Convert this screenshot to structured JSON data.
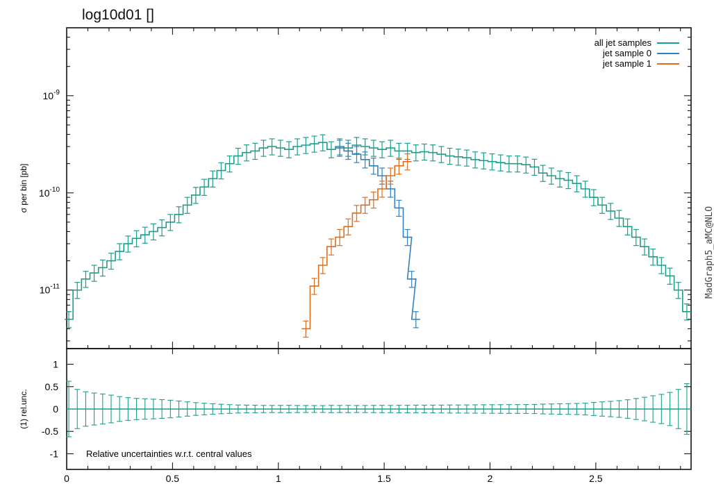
{
  "title": "log10d01 []",
  "side_label": "MadGraph5_aMC@NLO",
  "colors": {
    "all": "#1a9e8c",
    "j0": "#2f7fc1",
    "j1": "#dc6d1e"
  },
  "chart_data": [
    {
      "type": "line",
      "plot": "main",
      "ylabel": "σ per bin [pb]",
      "yscale": "log",
      "xlim": [
        0,
        2.95
      ],
      "ylim": [
        2.5e-12,
        5e-09
      ],
      "yticks": [
        {
          "v": 1e-11,
          "label": "10",
          "exp": "-11"
        },
        {
          "v": 1e-10,
          "label": "10",
          "exp": "-10"
        },
        {
          "v": 1e-09,
          "label": "10",
          "exp": "-9"
        }
      ],
      "legend_position": "top-right",
      "series": [
        {
          "name": "all jet samples",
          "color": "#1a9e8c",
          "points": [
            [
              0.01,
              5e-12
            ],
            [
              0.05,
              1e-11
            ],
            [
              0.09,
              1.3e-11
            ],
            [
              0.13,
              1.5e-11
            ],
            [
              0.17,
              1.7e-11
            ],
            [
              0.21,
              2e-11
            ],
            [
              0.25,
              2.5e-11
            ],
            [
              0.29,
              3e-11
            ],
            [
              0.33,
              3.4e-11
            ],
            [
              0.37,
              3.7e-11
            ],
            [
              0.41,
              4e-11
            ],
            [
              0.45,
              4.4e-11
            ],
            [
              0.49,
              5e-11
            ],
            [
              0.53,
              6e-11
            ],
            [
              0.57,
              7.5e-11
            ],
            [
              0.61,
              9.5e-11
            ],
            [
              0.65,
              1.15e-10
            ],
            [
              0.69,
              1.4e-10
            ],
            [
              0.73,
              1.7e-10
            ],
            [
              0.77,
              2e-10
            ],
            [
              0.81,
              2.4e-10
            ],
            [
              0.85,
              2.6e-10
            ],
            [
              0.89,
              2.7e-10
            ],
            [
              0.93,
              2.9e-10
            ],
            [
              0.97,
              3e-10
            ],
            [
              1.01,
              2.9e-10
            ],
            [
              1.05,
              2.8e-10
            ],
            [
              1.09,
              3e-10
            ],
            [
              1.13,
              3.1e-10
            ],
            [
              1.17,
              3.2e-10
            ],
            [
              1.21,
              3.3e-10
            ],
            [
              1.25,
              2.8e-10
            ],
            [
              1.29,
              3e-10
            ],
            [
              1.33,
              2.9e-10
            ],
            [
              1.37,
              3.1e-10
            ],
            [
              1.41,
              3e-10
            ],
            [
              1.45,
              2.9e-10
            ],
            [
              1.49,
              2.8e-10
            ],
            [
              1.53,
              2.9e-10
            ],
            [
              1.57,
              2.7e-10
            ],
            [
              1.61,
              2.7e-10
            ],
            [
              1.65,
              2.6e-10
            ],
            [
              1.69,
              2.65e-10
            ],
            [
              1.73,
              2.6e-10
            ],
            [
              1.77,
              2.5e-10
            ],
            [
              1.81,
              2.4e-10
            ],
            [
              1.85,
              2.35e-10
            ],
            [
              1.89,
              2.3e-10
            ],
            [
              1.93,
              2.2e-10
            ],
            [
              1.97,
              2.15e-10
            ],
            [
              2.01,
              2.1e-10
            ],
            [
              2.05,
              2.05e-10
            ],
            [
              2.09,
              2e-10
            ],
            [
              2.13,
              2e-10
            ],
            [
              2.17,
              1.95e-10
            ],
            [
              2.21,
              1.85e-10
            ],
            [
              2.25,
              1.6e-10
            ],
            [
              2.29,
              1.5e-10
            ],
            [
              2.33,
              1.4e-10
            ],
            [
              2.37,
              1.35e-10
            ],
            [
              2.41,
              1.25e-10
            ],
            [
              2.45,
              1.1e-10
            ],
            [
              2.49,
              9e-11
            ],
            [
              2.53,
              7.5e-11
            ],
            [
              2.57,
              6.5e-11
            ],
            [
              2.61,
              5.5e-11
            ],
            [
              2.65,
              4.5e-11
            ],
            [
              2.69,
              3.5e-11
            ],
            [
              2.73,
              2.8e-11
            ],
            [
              2.77,
              2.2e-11
            ],
            [
              2.81,
              1.8e-11
            ],
            [
              2.85,
              1.4e-11
            ],
            [
              2.89,
              1e-11
            ],
            [
              2.93,
              6e-12
            ]
          ]
        },
        {
          "name": "jet sample 0",
          "color": "#2f7fc1",
          "points": [
            [
              1.29,
              2.9e-10
            ],
            [
              1.33,
              2.7e-10
            ],
            [
              1.37,
              2.5e-10
            ],
            [
              1.41,
              2.2e-10
            ],
            [
              1.45,
              1.9e-10
            ],
            [
              1.49,
              1.5e-10
            ],
            [
              1.53,
              1.1e-10
            ],
            [
              1.57,
              7e-11
            ],
            [
              1.61,
              3.5e-11
            ],
            [
              1.63,
              1.3e-11
            ],
            [
              1.65,
              5e-12
            ]
          ]
        },
        {
          "name": "jet sample 1",
          "color": "#dc6d1e",
          "points": [
            [
              1.13,
              4e-12
            ],
            [
              1.17,
              1.1e-11
            ],
            [
              1.21,
              1.8e-11
            ],
            [
              1.25,
              2.8e-11
            ],
            [
              1.29,
              3.5e-11
            ],
            [
              1.33,
              4.5e-11
            ],
            [
              1.37,
              6.2e-11
            ],
            [
              1.41,
              7.5e-11
            ],
            [
              1.45,
              8.5e-11
            ],
            [
              1.49,
              1.1e-10
            ],
            [
              1.53,
              1.5e-10
            ],
            [
              1.57,
              1.9e-10
            ],
            [
              1.61,
              2.1e-10
            ]
          ]
        }
      ]
    },
    {
      "type": "line",
      "plot": "ratio",
      "ylabel": "(1) rel.unc.",
      "xlabel": "",
      "xlim": [
        0,
        2.95
      ],
      "ylim": [
        -1.35,
        1.35
      ],
      "yticks": [
        "1",
        "0.5",
        "0",
        "-0.5",
        "-1"
      ],
      "xticks": [
        "0",
        "0.5",
        "1",
        "1.5",
        "2",
        "2.5"
      ],
      "annotation": "Relative uncertainties w.r.t. central values"
    }
  ]
}
